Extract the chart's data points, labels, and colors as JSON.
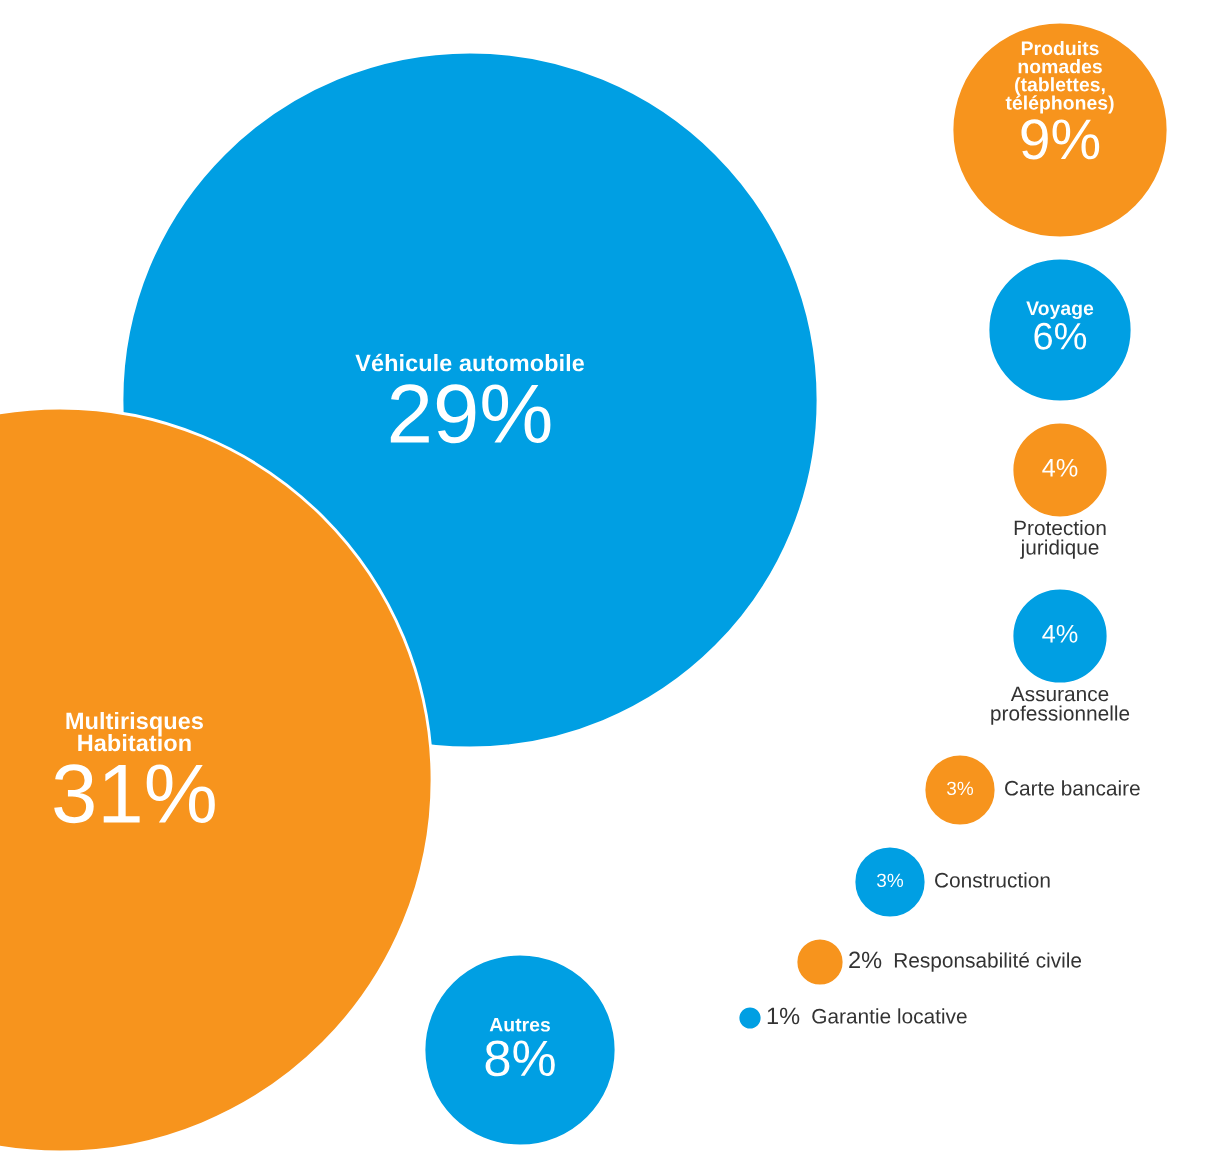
{
  "chart_data": {
    "type": "other",
    "categories": [
      "Multirisques\nHabitation",
      "Véhicule automobile",
      "Produits\nnomades\n(tablettes,\ntéléphones)",
      "Voyage",
      "Protection\njuridique",
      "Assurance\nprofessionnelle",
      "Carte bancaire",
      "Construction",
      "Responsabilité civile",
      "Garantie locative",
      "Autres"
    ],
    "values": [
      31,
      29,
      9,
      6,
      4,
      4,
      3,
      3,
      2,
      1,
      8
    ],
    "value_labels": [
      "31%",
      "29%",
      "9%",
      "6%",
      "4%",
      "4%",
      "3%",
      "3%",
      "2%",
      "1%",
      "8%"
    ],
    "colors": [
      "#f7941d",
      "#009fe3",
      "#f7941d",
      "#009fe3",
      "#f7941d",
      "#009fe3",
      "#f7941d",
      "#009fe3",
      "#f7941d",
      "#009fe3",
      "#009fe3"
    ]
  }
}
